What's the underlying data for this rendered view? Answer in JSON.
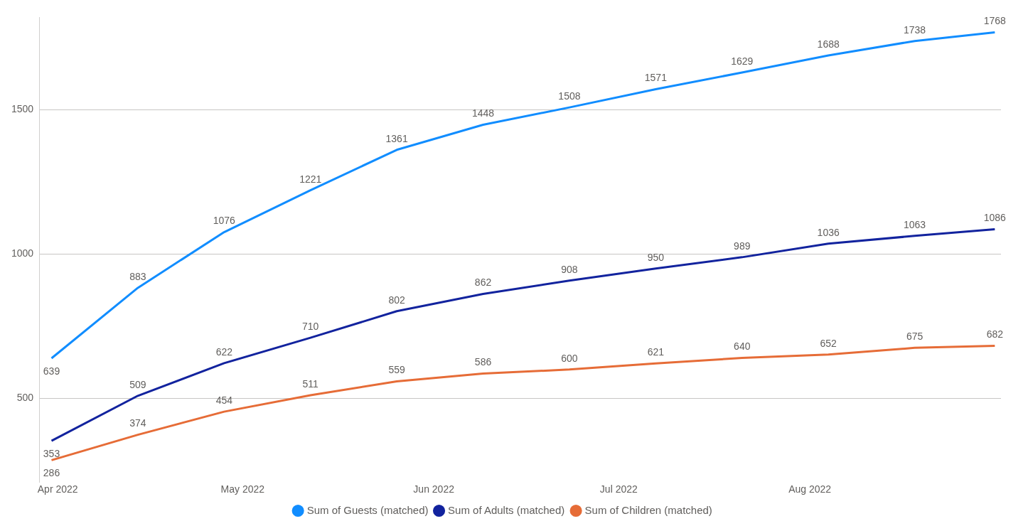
{
  "chart_data": {
    "type": "line",
    "x": [
      "2022-03-31",
      "2022-04-14",
      "2022-04-28",
      "2022-05-12",
      "2022-05-26",
      "2022-06-09",
      "2022-06-23",
      "2022-07-07",
      "2022-07-21",
      "2022-08-04",
      "2022-08-18",
      "2022-08-31"
    ],
    "series": [
      {
        "name": "Sum of Guests (matched)",
        "color": "#118dff",
        "values": [
          639,
          883,
          1076,
          1221,
          1361,
          1448,
          1508,
          1571,
          1629,
          1688,
          1738,
          1768
        ]
      },
      {
        "name": "Sum of Adults (matched)",
        "color": "#12239e",
        "values": [
          353,
          509,
          622,
          710,
          802,
          862,
          908,
          950,
          989,
          1036,
          1063,
          1086
        ]
      },
      {
        "name": "Sum of Children (matched)",
        "color": "#e66c37",
        "values": [
          286,
          374,
          454,
          511,
          559,
          586,
          600,
          621,
          640,
          652,
          675,
          682
        ]
      }
    ],
    "xlim": [
      "2022-03-29",
      "2022-09-01"
    ],
    "xticks": [
      {
        "value": "2022-04-01",
        "label": "Apr 2022"
      },
      {
        "value": "2022-05-01",
        "label": "May 2022"
      },
      {
        "value": "2022-06-01",
        "label": "Jun 2022"
      },
      {
        "value": "2022-07-01",
        "label": "Jul 2022"
      },
      {
        "value": "2022-08-01",
        "label": "Aug 2022"
      }
    ],
    "ylim": [
      210,
      1820
    ],
    "yticks": [
      500,
      1000,
      1500
    ],
    "grid": "y",
    "legend": "bottom",
    "marker": "none",
    "line_style": "solid",
    "data_labels": true
  }
}
